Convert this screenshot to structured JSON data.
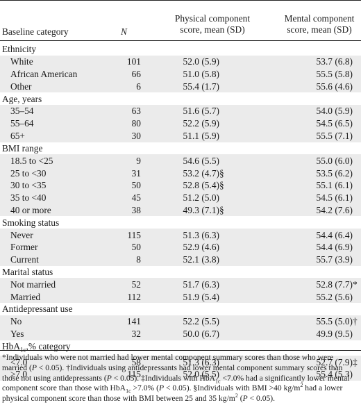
{
  "header": {
    "baseline_category": "Baseline category",
    "n": "N",
    "pcs_line1": "Physical component",
    "pcs_line2": "score, mean (SD)",
    "mcs_line1": "Mental component",
    "mcs_line2": "score, mean (SD)"
  },
  "rows": [
    {
      "type": "group",
      "label": "Ethnicity"
    },
    {
      "type": "row",
      "label": "White",
      "n": "101",
      "pcs": "52.0 (5.9)",
      "pcs_mark": "",
      "mcs": "53.7 (6.8)",
      "mcs_mark": ""
    },
    {
      "type": "row",
      "label": "African American",
      "n": "66",
      "pcs": "51.0 (5.8)",
      "pcs_mark": "",
      "mcs": "55.5 (5.8)",
      "mcs_mark": ""
    },
    {
      "type": "row",
      "label": "Other",
      "n": "6",
      "pcs": "55.4 (1.7)",
      "pcs_mark": "",
      "mcs": "55.6 (4.6)",
      "mcs_mark": ""
    },
    {
      "type": "group",
      "label": "Age, years"
    },
    {
      "type": "row",
      "label": "35–54",
      "n": "63",
      "pcs": "51.6 (5.7)",
      "pcs_mark": "",
      "mcs": "54.0 (5.9)",
      "mcs_mark": ""
    },
    {
      "type": "row",
      "label": "55–64",
      "n": "80",
      "pcs": "52.2 (5.9)",
      "pcs_mark": "",
      "mcs": "54.5 (6.5)",
      "mcs_mark": ""
    },
    {
      "type": "row",
      "label": "65+",
      "n": "30",
      "pcs": "51.1 (5.9)",
      "pcs_mark": "",
      "mcs": "55.5 (7.1)",
      "mcs_mark": ""
    },
    {
      "type": "group",
      "label": "BMI range"
    },
    {
      "type": "row",
      "label": "18.5 to <25",
      "n": "9",
      "pcs": "54.6 (5.5)",
      "pcs_mark": "",
      "mcs": "55.0 (6.0)",
      "mcs_mark": ""
    },
    {
      "type": "row",
      "label": "25 to <30",
      "n": "31",
      "pcs": "53.2 (4.7)",
      "pcs_mark": "§",
      "mcs": "53.5 (6.2)",
      "mcs_mark": ""
    },
    {
      "type": "row",
      "label": "30 to <35",
      "n": "50",
      "pcs": "52.8 (5.4)",
      "pcs_mark": "§",
      "mcs": "55.1 (6.1)",
      "mcs_mark": ""
    },
    {
      "type": "row",
      "label": "35 to <40",
      "n": "45",
      "pcs": "51.2 (5.0)",
      "pcs_mark": "",
      "mcs": "54.5 (6.1)",
      "mcs_mark": ""
    },
    {
      "type": "row",
      "label": "40 or more",
      "n": "38",
      "pcs": "49.3 (7.1)",
      "pcs_mark": "§",
      "mcs": "54.2 (7.6)",
      "mcs_mark": ""
    },
    {
      "type": "group",
      "label": "Smoking status"
    },
    {
      "type": "row",
      "label": "Never",
      "n": "115",
      "pcs": "51.3 (6.3)",
      "pcs_mark": "",
      "mcs": "54.4 (6.4)",
      "mcs_mark": ""
    },
    {
      "type": "row",
      "label": "Former",
      "n": "50",
      "pcs": "52.9 (4.6)",
      "pcs_mark": "",
      "mcs": "54.4 (6.9)",
      "mcs_mark": ""
    },
    {
      "type": "row",
      "label": "Current",
      "n": "8",
      "pcs": "52.1 (3.8)",
      "pcs_mark": "",
      "mcs": "55.7 (3.9)",
      "mcs_mark": ""
    },
    {
      "type": "group",
      "label": "Marital status"
    },
    {
      "type": "row",
      "label": "Not married",
      "n": "52",
      "pcs": "51.7 (6.3)",
      "pcs_mark": "",
      "mcs": "52.8 (7.7)",
      "mcs_mark": "*"
    },
    {
      "type": "row",
      "label": "Married",
      "n": "112",
      "pcs": "51.9 (5.4)",
      "pcs_mark": "",
      "mcs": "55.2 (5.6)",
      "mcs_mark": ""
    },
    {
      "type": "group",
      "label": "Antidepressant use"
    },
    {
      "type": "row",
      "label": "No",
      "n": "141",
      "pcs": "52.2 (5.5)",
      "pcs_mark": "",
      "mcs": "55.5 (5.0)",
      "mcs_mark": "†"
    },
    {
      "type": "row",
      "label": "Yes",
      "n": "32",
      "pcs": "50.0 (6.7)",
      "pcs_mark": "",
      "mcs": "49.9 (9.5)",
      "mcs_mark": ""
    },
    {
      "type": "group",
      "label": "HbA",
      "label_sub": "1c",
      "label_tail": ",% category"
    },
    {
      "type": "row",
      "label": "<7.0",
      "n": "58",
      "pcs": "51.3 (6.3)",
      "pcs_mark": "",
      "mcs": "52.7 (7.9)",
      "mcs_mark": "‡"
    },
    {
      "type": "row",
      "label": "≥7.0",
      "n": "115",
      "pcs": "52.0 (5.5)",
      "pcs_mark": "",
      "mcs": "55.4 (5.3)",
      "mcs_mark": ""
    }
  ],
  "footnote": [
    {
      "t": "*Individuals who were not married had lower mental component summary scores than those who were married ("
    },
    {
      "t": "P",
      "i": true
    },
    {
      "t": " < 0.05). †Individuals using antidepressants had lower mental component summary scores than those not using antidepressants ("
    },
    {
      "t": "P",
      "i": true
    },
    {
      "t": " < 0.05). ‡Individuals with HbA"
    },
    {
      "t": "1c",
      "sub": true
    },
    {
      "t": " <7.0% had a significantly lower mental component score than those with HbA"
    },
    {
      "t": "1c",
      "sub": true
    },
    {
      "t": " >7.0% ("
    },
    {
      "t": "P",
      "i": true
    },
    {
      "t": " < 0.05). §Individuals with BMI >40 kg/m"
    },
    {
      "t": "2",
      "sup": true
    },
    {
      "t": " had a lower physical component score than those with BMI between 25 and 35 kg/m"
    },
    {
      "t": "2",
      "sup": true
    },
    {
      "t": " ("
    },
    {
      "t": "P",
      "i": true
    },
    {
      "t": " < 0.05)."
    }
  ]
}
